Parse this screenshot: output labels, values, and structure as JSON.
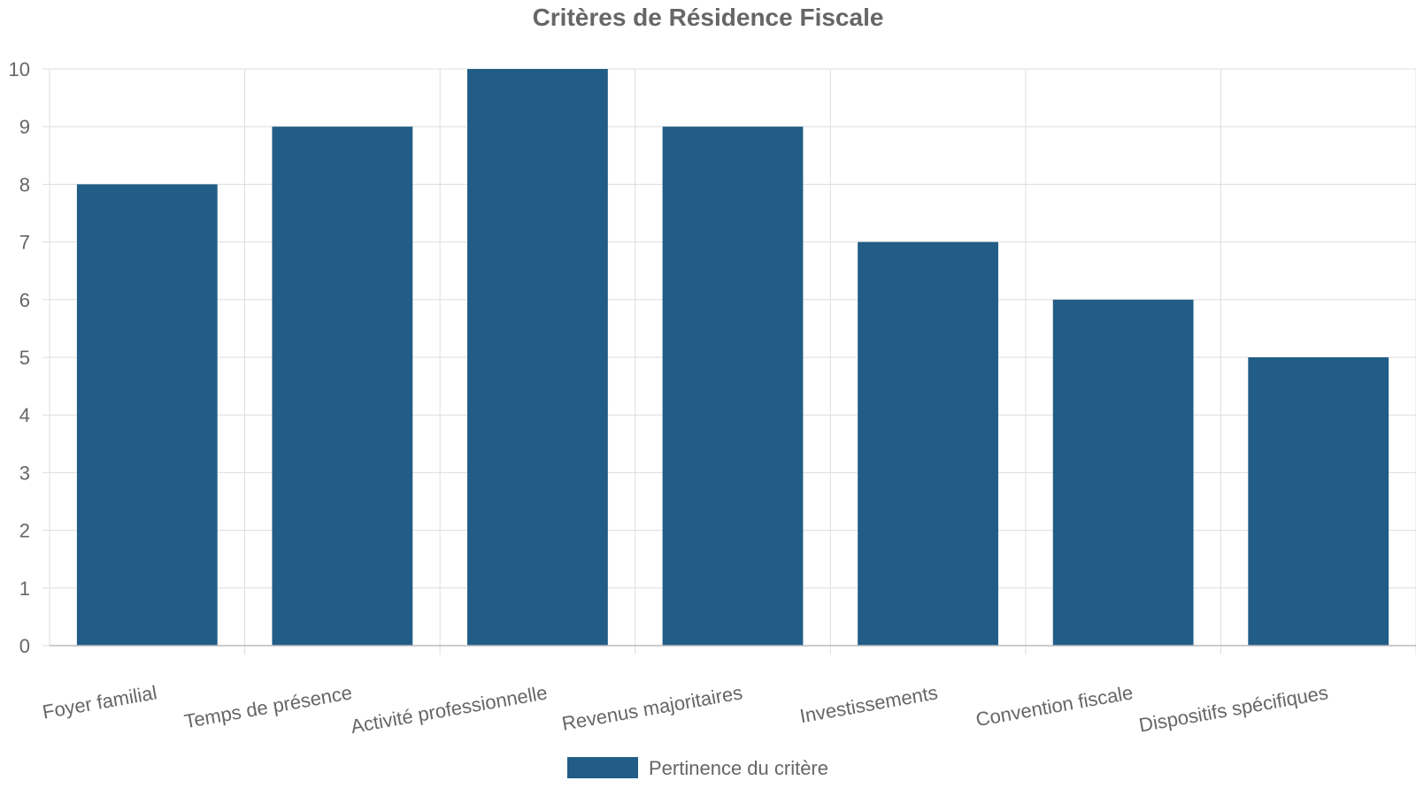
{
  "chart_data": {
    "type": "bar",
    "title": "Critères de Résidence Fiscale",
    "xlabel": "",
    "ylabel": "",
    "categories": [
      "Foyer familial",
      "Temps de présence",
      "Activité professionnelle",
      "Revenus majoritaires",
      "Investissements",
      "Convention fiscale",
      "Dispositifs spécifiques"
    ],
    "series": [
      {
        "name": "Pertinence du critère",
        "values": [
          8,
          9,
          10,
          9,
          7,
          6,
          5
        ],
        "color": "#215d87"
      }
    ],
    "ylim": [
      0,
      10
    ],
    "yticks": [
      "0",
      "1",
      "2",
      "3",
      "4",
      "5",
      "6",
      "7",
      "8",
      "9",
      "10"
    ],
    "grid": true,
    "legend_position": "bottom"
  }
}
